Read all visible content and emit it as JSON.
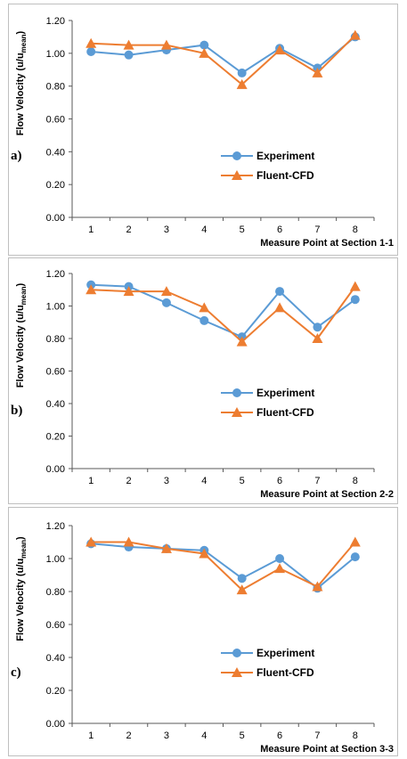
{
  "colors": {
    "experiment": "#5b9bd5",
    "cfd": "#ed7d31"
  },
  "chart_data": [
    {
      "type": "line",
      "panel_label": "a)",
      "xlabel": "Measure Point at Section 1-1",
      "ylabel": "Flow Velocity (u/u",
      "ylabel_sub": "mean",
      "ylabel_close": ")",
      "categories": [
        "1",
        "2",
        "3",
        "4",
        "5",
        "6",
        "7",
        "8"
      ],
      "y_ticks": [
        "0.00",
        "0.20",
        "0.40",
        "0.60",
        "0.80",
        "1.00",
        "1.20"
      ],
      "ylim": [
        0,
        1.2
      ],
      "grid": false,
      "legend": "center-right",
      "series": [
        {
          "name": "Experiment",
          "marker": "circle",
          "values": [
            1.01,
            0.99,
            1.02,
            1.05,
            0.88,
            1.03,
            0.91,
            1.1
          ]
        },
        {
          "name": "Fluent-CFD",
          "marker": "triangle",
          "values": [
            1.06,
            1.05,
            1.05,
            1.0,
            0.81,
            1.02,
            0.88,
            1.11
          ]
        }
      ]
    },
    {
      "type": "line",
      "panel_label": "b)",
      "xlabel": "Measure Point at Section 2-2",
      "ylabel": "Flow Velocity (u/u",
      "ylabel_sub": "mean",
      "ylabel_close": ")",
      "categories": [
        "1",
        "2",
        "3",
        "4",
        "5",
        "6",
        "7",
        "8"
      ],
      "y_ticks": [
        "0.00",
        "0.20",
        "0.40",
        "0.60",
        "0.80",
        "1.00",
        "1.20"
      ],
      "ylim": [
        0,
        1.2
      ],
      "grid": false,
      "legend": "center-right",
      "series": [
        {
          "name": "Experiment",
          "marker": "circle",
          "values": [
            1.13,
            1.12,
            1.02,
            0.91,
            0.81,
            1.09,
            0.87,
            1.04
          ]
        },
        {
          "name": "Fluent-CFD",
          "marker": "triangle",
          "values": [
            1.1,
            1.09,
            1.09,
            0.99,
            0.78,
            0.99,
            0.8,
            1.12
          ]
        }
      ]
    },
    {
      "type": "line",
      "panel_label": "c)",
      "xlabel": "Measure Point at Section 3-3",
      "ylabel": "Flow Velocity (u/u",
      "ylabel_sub": "mean",
      "ylabel_close": ")",
      "categories": [
        "1",
        "2",
        "3",
        "4",
        "5",
        "6",
        "7",
        "8"
      ],
      "y_ticks": [
        "0.00",
        "0.20",
        "0.40",
        "0.60",
        "0.80",
        "1.00",
        "1.20"
      ],
      "ylim": [
        0,
        1.2
      ],
      "grid": false,
      "legend": "center-right",
      "series": [
        {
          "name": "Experiment",
          "marker": "circle",
          "values": [
            1.09,
            1.07,
            1.06,
            1.05,
            0.88,
            1.0,
            0.82,
            1.01
          ]
        },
        {
          "name": "Fluent-CFD",
          "marker": "triangle",
          "values": [
            1.1,
            1.1,
            1.06,
            1.03,
            0.81,
            0.94,
            0.83,
            1.1
          ]
        }
      ]
    }
  ]
}
